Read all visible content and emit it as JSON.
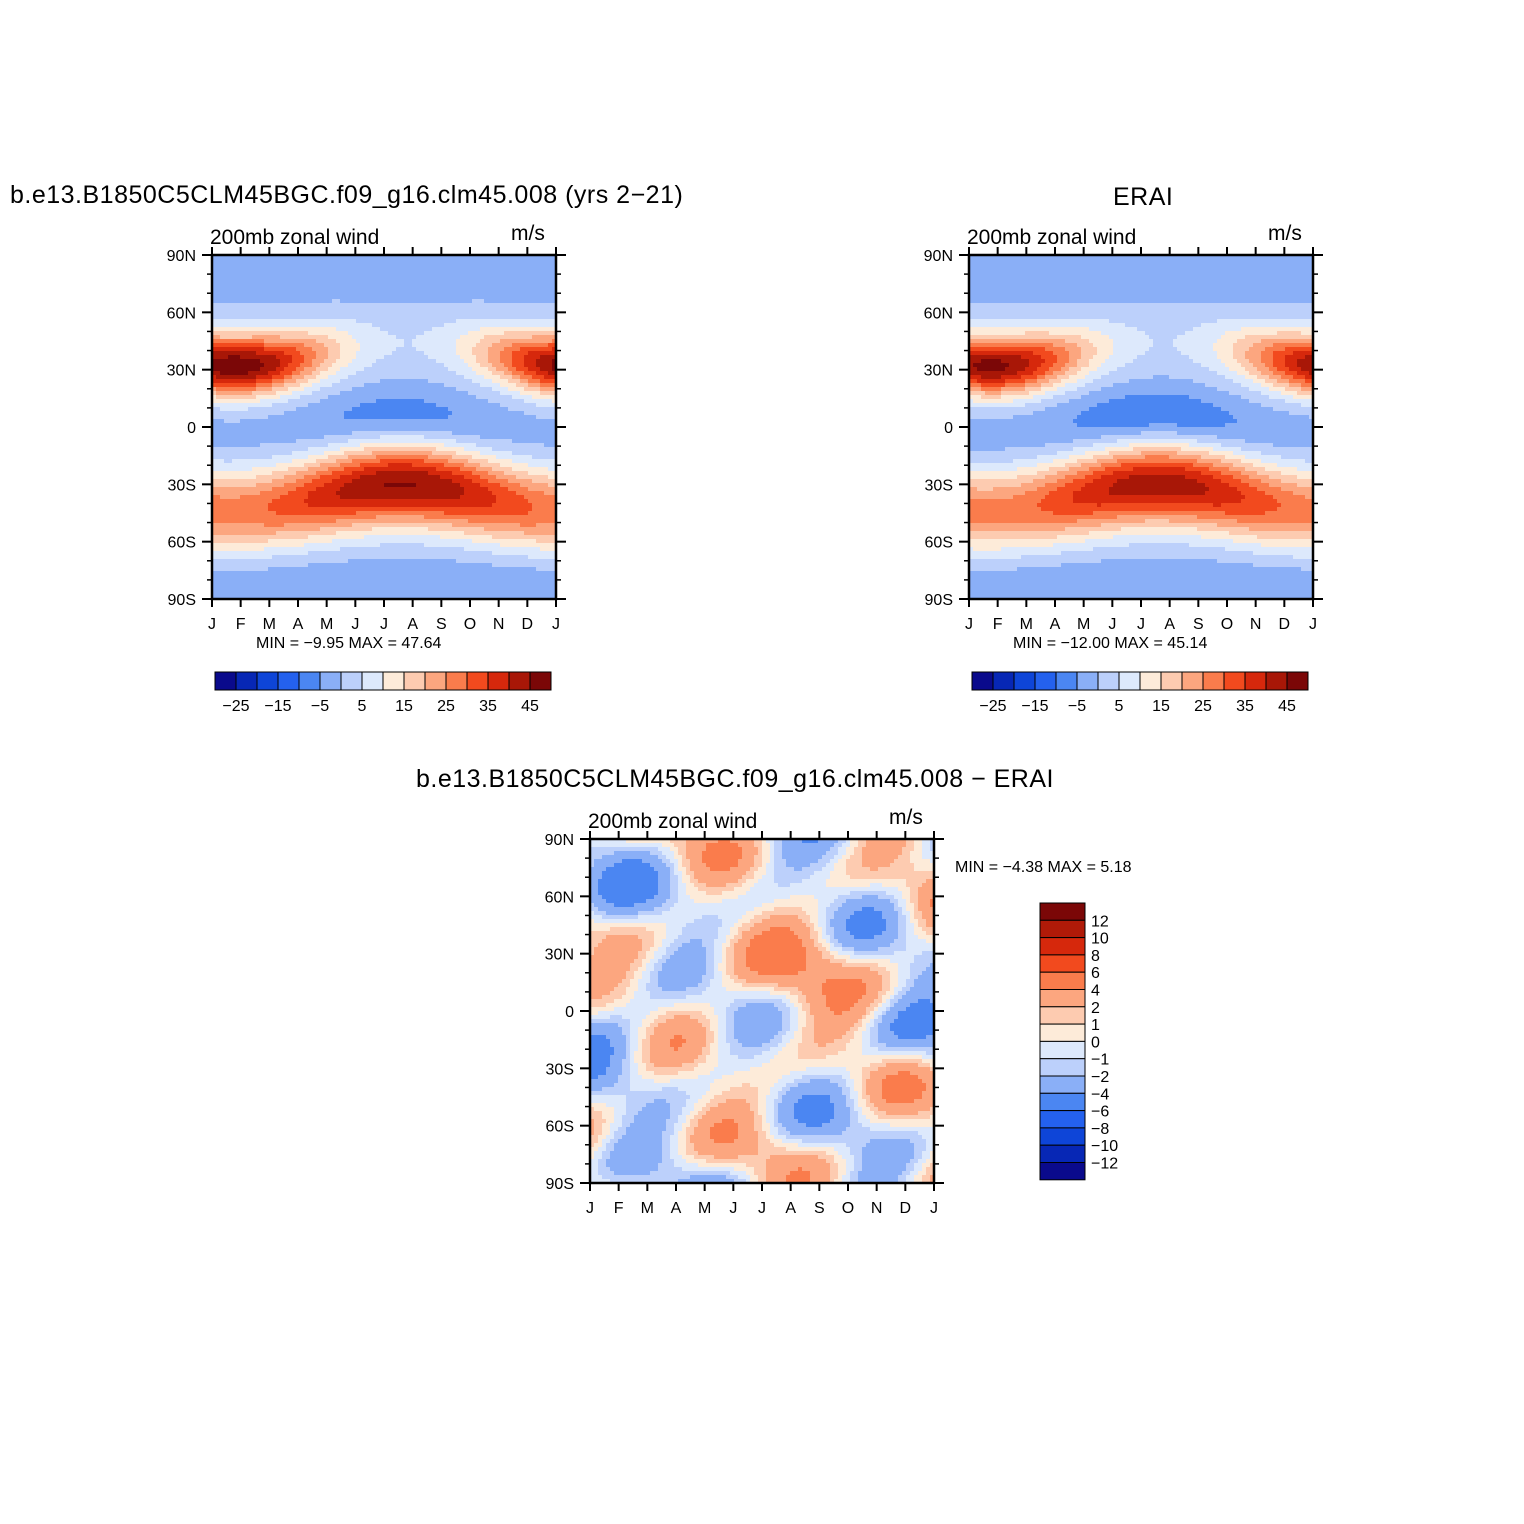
{
  "colors": {
    "div_bar_left": [
      "#0a0a8c",
      "#0727b5",
      "#0e45d8",
      "#2461ee",
      "#4b86f2",
      "#8aaff7",
      "#bcd0fb",
      "#dde9fc",
      "#fdebd9",
      "#fdcbb0",
      "#fca67f",
      "#fa7c4c",
      "#f24a1e",
      "#d6280c",
      "#a81707",
      "#7b0707"
    ],
    "diff_bar": [
      "#7b0707",
      "#b01a08",
      "#d6280c",
      "#f24a1e",
      "#fa7c4c",
      "#fca67f",
      "#fdcbb0",
      "#fdebd9",
      "#dde9fc",
      "#bcd0fb",
      "#8aaff7",
      "#4b86f2",
      "#2461ee",
      "#0e45d8",
      "#0727b5",
      "#0a0a8c"
    ]
  },
  "chart_data": [
    {
      "type": "heatmap",
      "title": "b.e13.B1850C5CLM45BGC.f09_g16.clm45.008 (yrs 2−21)",
      "left_label": "200mb  zonal  wind",
      "right_label": "m/s",
      "x_ticks": [
        "J",
        "F",
        "M",
        "A",
        "M",
        "J",
        "J",
        "A",
        "S",
        "O",
        "N",
        "D",
        "J"
      ],
      "y_ticks": [
        "90N",
        "60N",
        "30N",
        "0",
        "30S",
        "60S",
        "90S"
      ],
      "min_max": "MIN =   −9.95  MAX =    47.64",
      "colorbar_labels": [
        "−25",
        "−15",
        "−5",
        "5",
        "15",
        "25",
        "35",
        "45"
      ],
      "field": {
        "jet_nh": 47.64,
        "jet_sh": 44,
        "trop_min": -9.95
      }
    },
    {
      "type": "heatmap",
      "title": "ERAI",
      "left_label": "200mb  zonal  wind",
      "right_label": "m/s",
      "x_ticks": [
        "J",
        "F",
        "M",
        "A",
        "M",
        "J",
        "J",
        "A",
        "S",
        "O",
        "N",
        "D",
        "J"
      ],
      "y_ticks": [
        "90N",
        "60N",
        "30N",
        "0",
        "30S",
        "60S",
        "90S"
      ],
      "min_max": "MIN =  −12.00  MAX =    45.14",
      "colorbar_labels": [
        "−25",
        "−15",
        "−5",
        "5",
        "15",
        "25",
        "35",
        "45"
      ],
      "field": {
        "jet_nh": 45.14,
        "jet_sh": 42,
        "trop_min": -12.0
      }
    },
    {
      "type": "heatmap",
      "title": "b.e13.B1850C5CLM45BGC.f09_g16.clm45.008  −  ERAI",
      "left_label": "200mb  zonal  wind",
      "right_label": "m/s",
      "x_ticks": [
        "J",
        "F",
        "M",
        "A",
        "M",
        "J",
        "J",
        "A",
        "S",
        "O",
        "N",
        "D",
        "J"
      ],
      "y_ticks": [
        "90N",
        "60N",
        "30N",
        "0",
        "30S",
        "60S",
        "90S"
      ],
      "min_max": "MIN =    −4.38  MAX =     5.18",
      "colorbar_labels": [
        "12",
        "10",
        "8",
        "6",
        "4",
        "2",
        "1",
        "0",
        "−1",
        "−2",
        "−4",
        "−6",
        "−8",
        "−10",
        "−12"
      ]
    }
  ]
}
